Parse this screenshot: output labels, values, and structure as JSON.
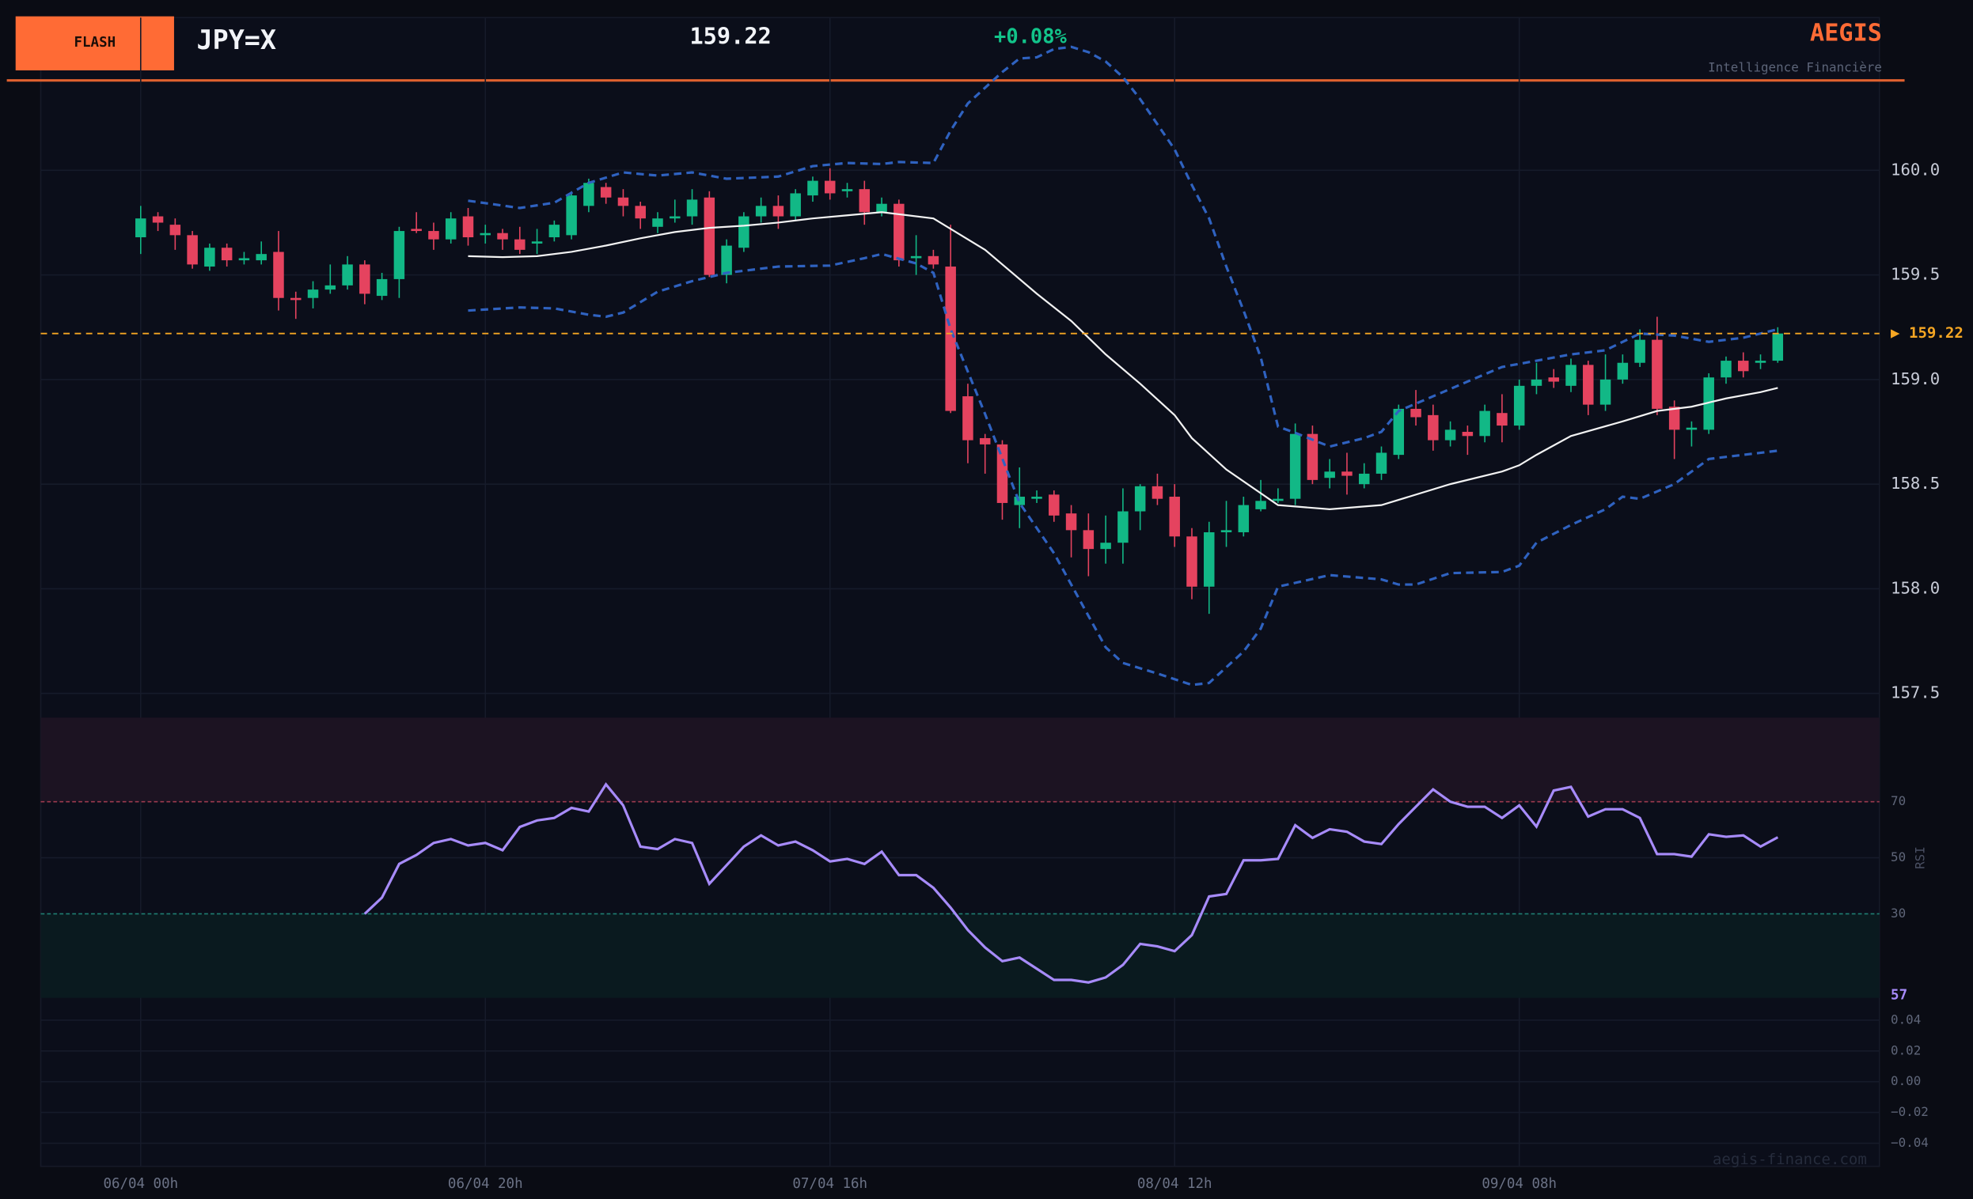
{
  "header": {
    "badge": "FLASH",
    "ticker": "JPY=X",
    "price": "159.22",
    "change": "+0.08%",
    "brand": "AEGIS",
    "tagline": "Intelligence Financière",
    "watermark": "aegis-finance.com"
  },
  "chart_data": [
    {
      "type": "candlestick",
      "xlim": [
        -5.8,
        100.9
      ],
      "xticks": [
        {
          "value": 0,
          "label": "06/04 00h"
        },
        {
          "value": 20,
          "label": "06/04 20h"
        },
        {
          "value": 40,
          "label": "07/04 16h"
        },
        {
          "value": 60,
          "label": "08/04 12h"
        },
        {
          "value": 80,
          "label": "09/04 08h"
        }
      ],
      "ylim": [
        157.42,
        160.73
      ],
      "yticks": [
        {
          "value": 160,
          "label": "160.0"
        },
        159.5,
        {
          "value": 159,
          "label": "159.0"
        },
        158.5,
        {
          "value": 158,
          "label": "158.0"
        },
        157.5
      ],
      "grid": true,
      "up_color": "#12b886",
      "down_color": "#e5435f",
      "open": [
        159.68,
        159.78,
        159.74,
        159.69,
        159.54,
        159.63,
        159.57,
        159.57,
        159.61,
        159.39,
        159.39,
        159.43,
        159.45,
        159.55,
        159.4,
        159.48,
        159.72,
        159.71,
        159.67,
        159.78,
        159.69,
        159.7,
        159.67,
        159.65,
        159.68,
        159.69,
        159.83,
        159.92,
        159.87,
        159.83,
        159.73,
        159.77,
        159.78,
        159.87,
        159.5,
        159.63,
        159.78,
        159.83,
        159.78,
        159.88,
        159.95,
        159.9,
        159.91,
        159.8,
        159.84,
        159.58,
        159.59,
        159.54,
        158.92,
        158.72,
        158.69,
        158.4,
        158.43,
        158.45,
        158.36,
        158.28,
        158.19,
        158.22,
        158.37,
        158.49,
        158.44,
        158.25,
        158.01,
        158.27,
        158.27,
        158.38,
        158.42,
        158.43,
        158.74,
        158.53,
        158.56,
        158.5,
        158.55,
        158.64,
        158.86,
        158.83,
        158.71,
        158.75,
        158.73,
        158.84,
        158.78,
        158.97,
        159.01,
        158.97,
        159.07,
        158.88,
        159.0,
        159.08,
        159.19,
        158.87,
        158.76,
        158.76,
        159.01,
        159.09,
        159.08,
        159.09
      ],
      "high": [
        159.83,
        159.8,
        159.77,
        159.71,
        159.65,
        159.65,
        159.61,
        159.66,
        159.71,
        159.42,
        159.47,
        159.55,
        159.59,
        159.57,
        159.51,
        159.73,
        159.8,
        159.75,
        159.8,
        159.82,
        159.74,
        159.72,
        159.73,
        159.72,
        159.76,
        159.9,
        159.96,
        159.94,
        159.91,
        159.85,
        159.8,
        159.86,
        159.91,
        159.9,
        159.67,
        159.8,
        159.87,
        159.88,
        159.91,
        159.97,
        160.01,
        159.94,
        159.95,
        159.87,
        159.86,
        159.69,
        159.62,
        159.74,
        158.98,
        158.74,
        158.71,
        158.58,
        158.47,
        158.47,
        158.4,
        158.36,
        158.35,
        158.48,
        158.5,
        158.55,
        158.5,
        158.29,
        158.32,
        158.42,
        158.44,
        158.52,
        158.48,
        158.79,
        158.78,
        158.62,
        158.65,
        158.6,
        158.68,
        158.88,
        158.95,
        158.88,
        158.8,
        158.78,
        158.88,
        158.93,
        159.0,
        159.08,
        159.05,
        159.1,
        159.09,
        159.12,
        159.12,
        159.24,
        159.3,
        158.9,
        158.8,
        159.03,
        159.11,
        159.13,
        159.12,
        159.25
      ],
      "low": [
        159.6,
        159.71,
        159.62,
        159.53,
        159.52,
        159.54,
        159.55,
        159.55,
        159.33,
        159.29,
        159.34,
        159.41,
        159.43,
        159.36,
        159.38,
        159.39,
        159.7,
        159.62,
        159.65,
        159.64,
        159.65,
        159.62,
        159.6,
        159.6,
        159.66,
        159.67,
        159.8,
        159.84,
        159.78,
        159.72,
        159.7,
        159.75,
        159.74,
        159.49,
        159.46,
        159.61,
        159.75,
        159.72,
        159.76,
        159.85,
        159.86,
        159.87,
        159.74,
        159.78,
        159.54,
        159.5,
        159.53,
        158.84,
        158.6,
        158.55,
        158.33,
        158.29,
        158.41,
        158.32,
        158.15,
        158.06,
        158.12,
        158.12,
        158.28,
        158.4,
        158.2,
        157.95,
        157.88,
        158.2,
        158.25,
        158.37,
        158.41,
        158.4,
        158.5,
        158.48,
        158.45,
        158.48,
        158.52,
        158.62,
        158.78,
        158.66,
        158.68,
        158.64,
        158.7,
        158.7,
        158.76,
        158.93,
        158.96,
        158.94,
        158.83,
        158.85,
        158.98,
        159.06,
        158.83,
        158.62,
        158.68,
        158.74,
        158.98,
        159.01,
        159.05,
        159.08
      ],
      "close": [
        159.77,
        159.75,
        159.69,
        159.55,
        159.63,
        159.57,
        159.58,
        159.6,
        159.39,
        159.38,
        159.43,
        159.45,
        159.55,
        159.41,
        159.48,
        159.71,
        159.71,
        159.67,
        159.77,
        159.68,
        159.7,
        159.67,
        159.62,
        159.66,
        159.74,
        159.88,
        159.94,
        159.87,
        159.83,
        159.77,
        159.77,
        159.78,
        159.86,
        159.5,
        159.64,
        159.78,
        159.83,
        159.78,
        159.89,
        159.95,
        159.89,
        159.91,
        159.8,
        159.84,
        159.57,
        159.59,
        159.55,
        158.85,
        158.71,
        158.69,
        158.41,
        158.44,
        158.44,
        158.35,
        158.28,
        158.19,
        158.22,
        158.37,
        158.49,
        158.43,
        158.25,
        158.01,
        158.27,
        158.28,
        158.4,
        158.42,
        158.43,
        158.74,
        158.52,
        158.56,
        158.54,
        158.55,
        158.65,
        158.86,
        158.82,
        158.71,
        158.76,
        158.73,
        158.85,
        158.78,
        158.97,
        159.0,
        158.99,
        159.07,
        158.88,
        159.0,
        159.08,
        159.19,
        158.86,
        158.76,
        158.77,
        159.01,
        159.09,
        159.04,
        159.09,
        159.22
      ],
      "sma": {
        "color": "#f2f2f2",
        "x": [
          19,
          21,
          23,
          25,
          27,
          29,
          31,
          33,
          35,
          37,
          39,
          41,
          43,
          46,
          49,
          52,
          54,
          56,
          58,
          60,
          61,
          63,
          66,
          69,
          72,
          76,
          79,
          80,
          81,
          83,
          86,
          88,
          90,
          92,
          94,
          95
        ],
        "values": [
          159.59,
          159.585,
          159.59,
          159.61,
          159.64,
          159.675,
          159.705,
          159.725,
          159.735,
          159.75,
          159.77,
          159.785,
          159.8,
          159.77,
          159.62,
          159.41,
          159.28,
          159.12,
          158.98,
          158.83,
          158.72,
          158.57,
          158.4,
          158.38,
          158.4,
          158.5,
          158.56,
          158.59,
          158.64,
          158.73,
          158.8,
          158.85,
          158.87,
          158.91,
          158.94,
          158.96
        ]
      },
      "upper_band": {
        "color": "#2f62c0",
        "x": [
          19,
          22,
          24,
          26,
          28,
          30,
          32,
          34,
          37,
          39,
          41,
          43,
          44,
          46,
          47,
          48,
          50,
          51,
          52,
          53,
          54,
          55,
          56,
          57,
          58,
          59,
          60,
          61,
          62,
          63,
          64,
          65,
          66,
          67,
          69,
          71,
          72,
          73,
          75,
          77,
          79,
          80,
          83,
          85,
          87,
          89,
          91,
          93,
          95
        ],
        "values": [
          159.855,
          159.82,
          159.845,
          159.94,
          159.99,
          159.975,
          159.99,
          159.96,
          159.97,
          160.02,
          160.035,
          160.03,
          160.04,
          160.035,
          160.19,
          160.32,
          160.47,
          160.535,
          160.54,
          160.58,
          160.59,
          160.565,
          160.52,
          160.445,
          160.34,
          160.22,
          160.1,
          159.93,
          159.77,
          159.54,
          159.33,
          159.105,
          158.775,
          158.745,
          158.68,
          158.72,
          158.75,
          158.85,
          158.92,
          158.99,
          159.06,
          159.075,
          159.12,
          159.14,
          159.22,
          159.21,
          159.18,
          159.2,
          159.24
        ]
      },
      "lower_band": {
        "color": "#2f62c0",
        "x": [
          19,
          22,
          24,
          26,
          27,
          28,
          30,
          32,
          34,
          37,
          40,
          42,
          43,
          45,
          46,
          47,
          49,
          51,
          53,
          55,
          56,
          57,
          59,
          61,
          62,
          64,
          65,
          66,
          69,
          72,
          73,
          74,
          76,
          79,
          80,
          81,
          83,
          85,
          86,
          87,
          89,
          91,
          93,
          95
        ],
        "values": [
          159.33,
          159.345,
          159.34,
          159.31,
          159.3,
          159.32,
          159.42,
          159.47,
          159.51,
          159.54,
          159.545,
          159.58,
          159.6,
          159.555,
          159.51,
          159.24,
          158.835,
          158.41,
          158.17,
          157.87,
          157.72,
          157.645,
          157.595,
          157.54,
          157.55,
          157.7,
          157.81,
          158.01,
          158.065,
          158.045,
          158.02,
          158.02,
          158.075,
          158.08,
          158.11,
          158.22,
          158.305,
          158.38,
          158.44,
          158.43,
          158.5,
          158.62,
          158.64,
          158.66
        ]
      },
      "last_price": {
        "value": 159.22,
        "label": "▶ 159.22",
        "color": "#f5a623"
      }
    },
    {
      "type": "line",
      "ylabel": "RSI",
      "ylim": [
        0,
        100
      ],
      "yticks": [
        30,
        50,
        70
      ],
      "color": "#a78bfa",
      "values": [
        null,
        null,
        null,
        null,
        null,
        null,
        null,
        null,
        null,
        null,
        null,
        null,
        null,
        30,
        35.8,
        47.8,
        51,
        55.3,
        56.7,
        54.4,
        55.3,
        52.7,
        61,
        63.3,
        64.2,
        67.8,
        66.5,
        76.2,
        68.7,
        54,
        53.1,
        56.7,
        55.3,
        40.7,
        47.3,
        54,
        58,
        54.4,
        55.8,
        52.7,
        48.7,
        49.6,
        47.8,
        52.2,
        43.8,
        43.8,
        39.3,
        32.2,
        24.2,
        18,
        13.1,
        14.4,
        10.4,
        6.4,
        6.4,
        5.5,
        7.3,
        11.8,
        19.3,
        18.4,
        16.7,
        22.4,
        36.2,
        37.1,
        49.1,
        49.1,
        49.6,
        61.6,
        57.1,
        60.2,
        59.3,
        55.8,
        54.9,
        62,
        68.2,
        74.4,
        70,
        68.2,
        68.2,
        64.2,
        68.7,
        61.1,
        74,
        75.3,
        64.7,
        67.3,
        67.3,
        64.2,
        51.3,
        51.3,
        50.4,
        58.4,
        57.5,
        58,
        54,
        57.3
      ],
      "last_value_label": "57",
      "overbought": {
        "range": [
          70,
          100
        ],
        "fill": "#1c1322",
        "line": "#9b3a4e"
      },
      "oversold": {
        "range": [
          0,
          30
        ],
        "fill": "#0a1a1f",
        "line": "#1f7f73"
      }
    },
    {
      "type": "line",
      "ylim": [
        -0.055,
        0.052
      ],
      "yticks": [
        0.04,
        0.02,
        {
          "value": 0,
          "label": "0.00"
        },
        {
          "value": -0.02,
          "label": "−0.02"
        },
        {
          "value": -0.04,
          "label": "−0.04"
        }
      ]
    }
  ]
}
